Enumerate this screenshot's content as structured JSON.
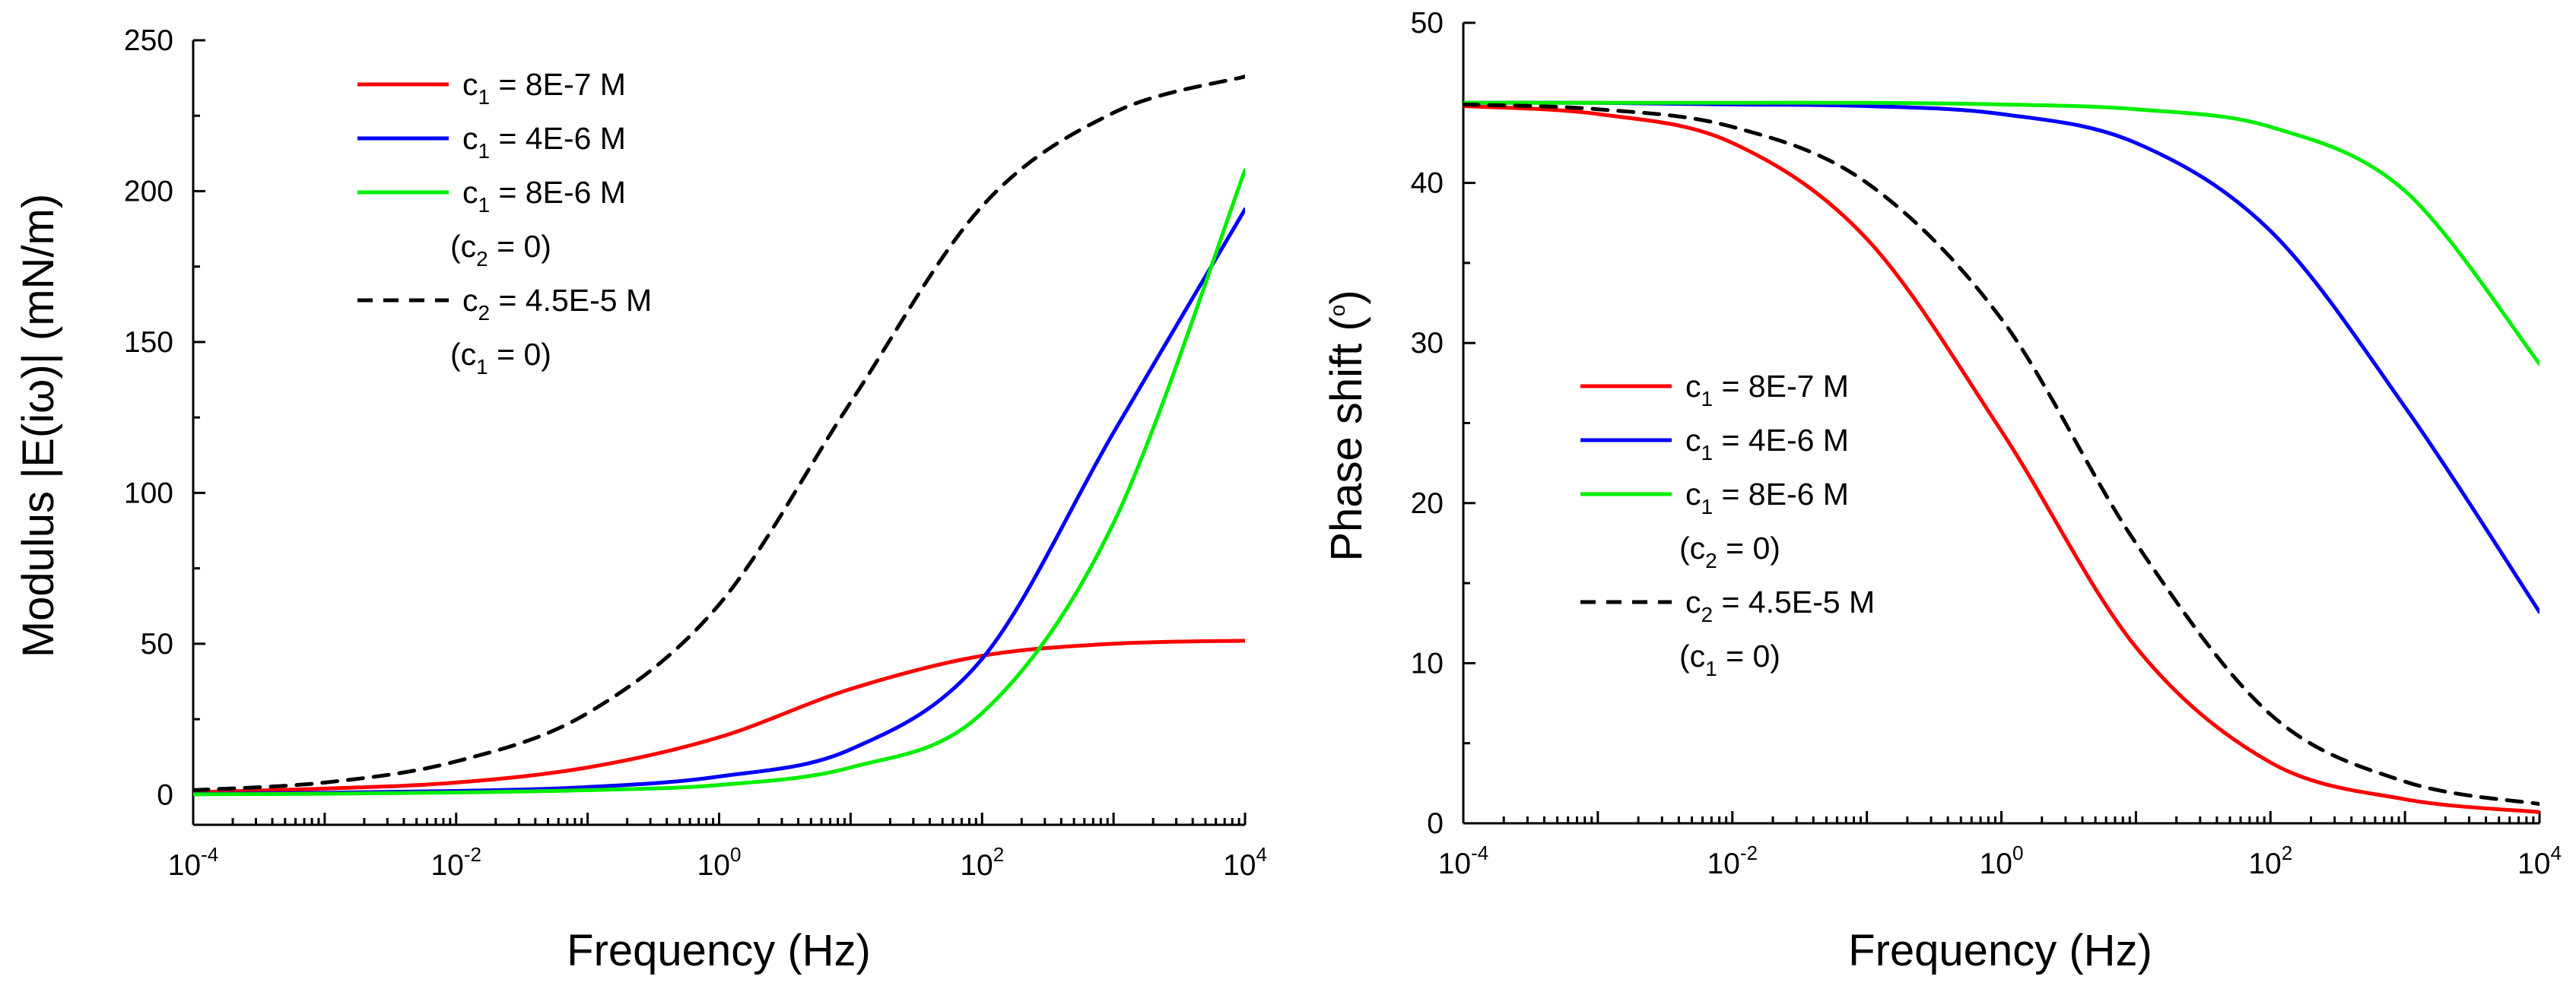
{
  "chart_data": [
    {
      "type": "line",
      "xscale": "log",
      "xlim": [
        0.0001,
        10000
      ],
      "ylim": [
        -10,
        250
      ],
      "xlabel": "Frequency (Hz)",
      "ylabel": "Modulus |E(iω)| (mN/m)",
      "yticks": [
        0,
        50,
        100,
        150,
        200,
        250
      ],
      "xtick_labels": [
        {
          "base": "10",
          "exp": "-4"
        },
        {
          "base": "10",
          "exp": "-2"
        },
        {
          "base": "10",
          "exp": "0"
        },
        {
          "base": "10",
          "exp": "2"
        },
        {
          "base": "10",
          "exp": "4"
        }
      ],
      "legend_position": "top-left",
      "legend": [
        {
          "color": "#ff0000",
          "dash": false,
          "var": "c",
          "sub": "1",
          "rest": " = 8E-7 M",
          "note": null
        },
        {
          "color": "#0000ff",
          "dash": false,
          "var": "c",
          "sub": "1",
          "rest": " = 4E-6 M",
          "note": null
        },
        {
          "color": "#00ee00",
          "dash": false,
          "var": "c",
          "sub": "1",
          "rest": " = 8E-6 M",
          "note": {
            "open": "(c",
            "sub": "2",
            "close": " = 0)"
          }
        },
        {
          "color": "#000000",
          "dash": true,
          "var": "c",
          "sub": "2",
          "rest": " = 4.5E-5 M",
          "note": {
            "open": "(c",
            "sub": "1",
            "close": " = 0)"
          }
        }
      ],
      "series": [
        {
          "name": "c1 = 8E-7 M",
          "color": "#ff0000",
          "dash": false,
          "x": [
            0.0001,
            0.001,
            0.01,
            0.1,
            1,
            10,
            100,
            1000,
            10000
          ],
          "y": [
            0.8,
            2,
            4,
            9,
            19,
            35,
            46,
            50,
            51
          ]
        },
        {
          "name": "c1 = 4E-6 M",
          "color": "#0000ff",
          "dash": false,
          "x": [
            0.0001,
            0.001,
            0.01,
            0.1,
            1,
            10,
            100,
            1000,
            10000
          ],
          "y": [
            0.2,
            0.6,
            1.2,
            2.5,
            6,
            15,
            45,
            120,
            194
          ]
        },
        {
          "name": "c1 = 8E-6 M",
          "color": "#00ee00",
          "dash": false,
          "x": [
            0.0001,
            0.001,
            0.01,
            0.1,
            1,
            10,
            100,
            1000,
            10000
          ],
          "y": [
            0.1,
            0.3,
            0.7,
            1.5,
            3.2,
            9,
            27,
            90,
            207
          ]
        },
        {
          "name": "c2 = 4.5E-5 M (c1 = 0)",
          "color": "#000000",
          "dash": true,
          "x": [
            0.0001,
            0.001,
            0.01,
            0.1,
            1,
            10,
            100,
            1000,
            10000
          ],
          "y": [
            1.5,
            4,
            11,
            27,
            63,
            130,
            195,
            226,
            238
          ]
        }
      ]
    },
    {
      "type": "line",
      "xscale": "log",
      "xlim": [
        0.0001,
        10000
      ],
      "ylim": [
        0,
        50
      ],
      "xlabel": "Frequency (Hz)",
      "ylabel": "Phase shift (°)",
      "ylabel_main": "Phase shift (",
      "ylabel_sup": "o",
      "ylabel_close": ")",
      "yticks": [
        0,
        10,
        20,
        30,
        40,
        50
      ],
      "xtick_labels": [
        {
          "base": "10",
          "exp": "-4"
        },
        {
          "base": "10",
          "exp": "-2"
        },
        {
          "base": "10",
          "exp": "0"
        },
        {
          "base": "10",
          "exp": "2"
        },
        {
          "base": "10",
          "exp": "4"
        }
      ],
      "legend_position": "center-left",
      "legend": [
        {
          "color": "#ff0000",
          "dash": false,
          "var": "c",
          "sub": "1",
          "rest": " = 8E-7 M",
          "note": null
        },
        {
          "color": "#0000ff",
          "dash": false,
          "var": "c",
          "sub": "1",
          "rest": " = 4E-6 M",
          "note": null
        },
        {
          "color": "#00ee00",
          "dash": false,
          "var": "c",
          "sub": "1",
          "rest": " = 8E-6 M",
          "note": {
            "open": "(c",
            "sub": "2",
            "close": " = 0)"
          }
        },
        {
          "color": "#000000",
          "dash": true,
          "var": "c",
          "sub": "2",
          "rest": " = 4.5E-5 M",
          "note": {
            "open": "(c",
            "sub": "1",
            "close": " = 0)"
          }
        }
      ],
      "series": [
        {
          "name": "c1 = 8E-7 M",
          "color": "#ff0000",
          "dash": false,
          "x": [
            0.0001,
            0.001,
            0.01,
            0.1,
            1,
            10,
            100,
            1000,
            10000
          ],
          "y": [
            44.8,
            44.3,
            42.5,
            36.5,
            24.5,
            11,
            3.8,
            1.5,
            0.7
          ]
        },
        {
          "name": "c1 = 4E-6 M",
          "color": "#0000ff",
          "dash": false,
          "x": [
            0.0001,
            0.001,
            0.01,
            0.1,
            1,
            10,
            100,
            1000,
            10000
          ],
          "y": [
            45,
            45,
            44.9,
            44.8,
            44.3,
            42.5,
            37,
            26,
            13.2
          ]
        },
        {
          "name": "c1 = 8E-6 M",
          "color": "#00ee00",
          "dash": false,
          "x": [
            0.0001,
            0.001,
            0.01,
            0.1,
            1,
            10,
            100,
            1000,
            10000
          ],
          "y": [
            45,
            45,
            45,
            45,
            44.9,
            44.6,
            43.5,
            39.5,
            28.7
          ]
        },
        {
          "name": "c2 = 4.5E-5 M (c1 = 0)",
          "color": "#000000",
          "dash": true,
          "x": [
            0.0001,
            0.001,
            0.01,
            0.1,
            1,
            10,
            100,
            1000,
            10000
          ],
          "y": [
            44.9,
            44.6,
            43.5,
            40,
            31.5,
            17.5,
            6.8,
            2.6,
            1.2
          ]
        }
      ]
    }
  ]
}
